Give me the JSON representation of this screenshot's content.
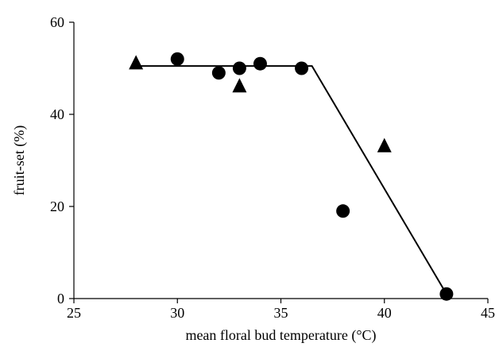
{
  "chart_data": {
    "type": "scatter",
    "xlabel": "mean floral bud temperature (°C)",
    "ylabel": "fruit-set (%)",
    "xlim": [
      25,
      45
    ],
    "ylim": [
      0,
      60
    ],
    "x_ticks": [
      25,
      30,
      35,
      40,
      45
    ],
    "y_ticks": [
      0,
      20,
      40,
      60
    ],
    "grid": false,
    "series": [
      {
        "marker": "circle",
        "points": [
          [
            30,
            52
          ],
          [
            32,
            49
          ],
          [
            33,
            50
          ],
          [
            34,
            51
          ],
          [
            36,
            50
          ],
          [
            38,
            19
          ],
          [
            43,
            1
          ]
        ]
      },
      {
        "marker": "triangle",
        "points": [
          [
            28,
            51
          ],
          [
            33,
            46
          ],
          [
            40,
            33
          ]
        ]
      }
    ],
    "fit_line": [
      [
        28.2,
        50.5
      ],
      [
        36.5,
        50.5
      ],
      [
        43,
        1
      ]
    ],
    "colors": {
      "marker": "#000000",
      "line": "#000000"
    }
  }
}
